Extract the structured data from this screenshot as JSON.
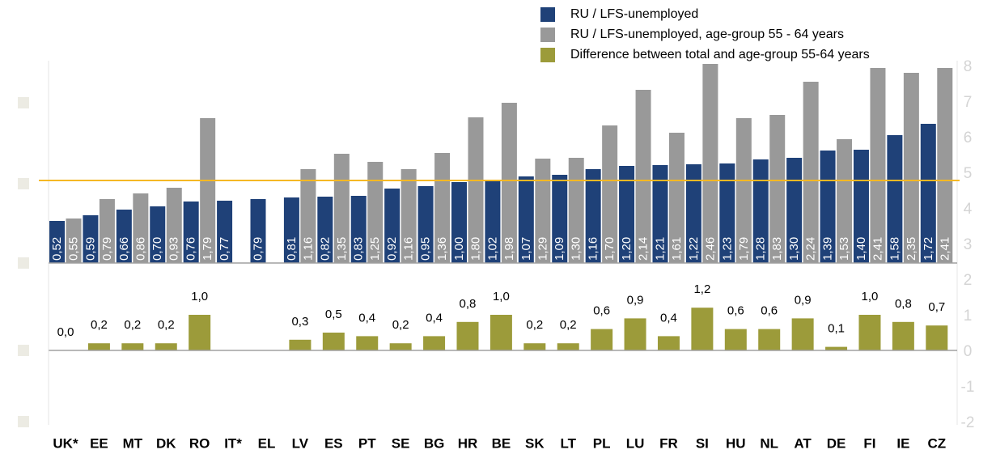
{
  "chart_data": [
    {
      "type": "bar",
      "categories": [
        "UK*",
        "EE",
        "MT",
        "DK",
        "RO",
        "IT*",
        "EL",
        "LV",
        "ES",
        "PT",
        "SE",
        "BG",
        "HR",
        "BE",
        "SK",
        "LT",
        "PL",
        "LU",
        "FR",
        "SI",
        "HU",
        "NL",
        "AT",
        "DE",
        "FI",
        "IE",
        "CZ"
      ],
      "series": [
        {
          "name": "RU / LFS-unemployed",
          "color": "#1f4178",
          "values": [
            0.52,
            0.59,
            0.66,
            0.7,
            0.76,
            0.77,
            0.79,
            0.81,
            0.82,
            0.83,
            0.92,
            0.95,
            1.0,
            1.02,
            1.07,
            1.09,
            1.16,
            1.2,
            1.21,
            1.22,
            1.23,
            1.28,
            1.3,
            1.39,
            1.4,
            1.58,
            1.72
          ],
          "value_labels": [
            "0,52",
            "0,59",
            "0,66",
            "0,70",
            "0,76",
            "0,77",
            "0,79",
            "0,81",
            "0,82",
            "0,83",
            "0,92",
            "0,95",
            "1,00",
            "1,02",
            "1,07",
            "1,09",
            "1,16",
            "1,20",
            "1,21",
            "1,22",
            "1,23",
            "1,28",
            "1,30",
            "1,39",
            "1,40",
            "1,58",
            "1,72"
          ]
        },
        {
          "name": "RU / LFS-unemployed, age-group 55 - 64 years",
          "color": "#999999",
          "values": [
            0.55,
            0.79,
            0.86,
            0.93,
            1.79,
            null,
            null,
            1.16,
            1.35,
            1.25,
            1.16,
            1.36,
            1.8,
            1.98,
            1.29,
            1.3,
            1.7,
            2.14,
            1.61,
            2.46,
            1.79,
            1.83,
            2.24,
            1.53,
            2.41,
            2.35,
            2.41
          ],
          "value_labels": [
            "0,55",
            "0,79",
            "0,86",
            "0,93",
            "1,79",
            null,
            null,
            "1,16",
            "1,35",
            "1,25",
            "1,16",
            "1,36",
            "1,80",
            "1,98",
            "1,29",
            "1,30",
            "1,70",
            "2,14",
            "1,61",
            "2,46",
            "1,79",
            "1,83",
            "2,24",
            "1,53",
            "2,41",
            "2,35",
            "2,41"
          ]
        }
      ],
      "reference_line": 1.02,
      "reference_color": "#f5b824",
      "ylim": [
        0,
        2.5
      ]
    },
    {
      "type": "bar",
      "series": [
        {
          "name": "Difference between total and age-group 55-64 years",
          "color": "#9c9b3a",
          "values": [
            0.0,
            0.2,
            0.2,
            0.2,
            1.0,
            null,
            null,
            0.3,
            0.5,
            0.4,
            0.2,
            0.4,
            0.8,
            1.0,
            0.2,
            0.2,
            0.6,
            0.9,
            0.4,
            1.2,
            0.6,
            0.6,
            0.9,
            0.1,
            1.0,
            0.8,
            0.7
          ],
          "value_labels": [
            "0,0",
            "0,2",
            "0,2",
            "0,2",
            "1,0",
            null,
            null,
            "0,3",
            "0,5",
            "0,4",
            "0,2",
            "0,4",
            "0,8",
            "1,0",
            "0,2",
            "0,2",
            "0,6",
            "0,9",
            "0,4",
            "1,2",
            "0,6",
            "0,6",
            "0,9",
            "0,1",
            "1,0",
            "0,8",
            "0,7"
          ]
        }
      ],
      "ylim": [
        -2,
        8
      ],
      "yticks": [
        -2,
        -1,
        0,
        1,
        2,
        3,
        4,
        5,
        6,
        7,
        8
      ]
    }
  ]
}
